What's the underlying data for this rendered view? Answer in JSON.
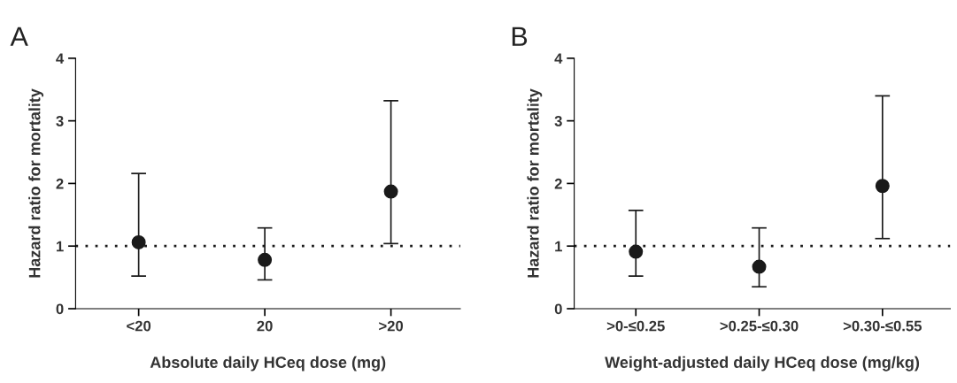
{
  "chart_data": [
    {
      "type": "scatter",
      "title": "A",
      "xlabel": "Absolute daily HCeq dose (mg)",
      "ylabel": "Hazard ratio for mortality",
      "categories": [
        "<20",
        "20",
        ">20"
      ],
      "series": [
        {
          "color": "#1a1a1a",
          "values": [
            1.06,
            0.78,
            1.87
          ],
          "errors": [
            [
              0.52,
              2.16
            ],
            [
              0.46,
              1.29
            ],
            [
              1.04,
              3.32
            ]
          ]
        }
      ],
      "ylim": [
        0,
        4
      ],
      "yticks": [
        0,
        1,
        2,
        3,
        4
      ],
      "marker": "circle",
      "grid": false,
      "legend": false,
      "ref_lines": [
        {
          "axis": "y",
          "value": 1,
          "line_style": "dotted",
          "color": "#1a1a1a"
        }
      ]
    },
    {
      "type": "scatter",
      "title": "B",
      "xlabel": "Weight-adjusted daily HCeq dose (mg/kg)",
      "ylabel": "Hazard ratio for mortality",
      "categories": [
        ">0-≤0.25",
        ">0.25-≤0.30",
        ">0.30-≤0.55"
      ],
      "series": [
        {
          "color": "#1a1a1a",
          "values": [
            0.91,
            0.67,
            1.96
          ],
          "errors": [
            [
              0.52,
              1.57
            ],
            [
              0.35,
              1.29
            ],
            [
              1.12,
              3.4
            ]
          ]
        }
      ],
      "ylim": [
        0,
        4
      ],
      "yticks": [
        0,
        1,
        2,
        3,
        4
      ],
      "marker": "circle",
      "grid": false,
      "legend": false,
      "ref_lines": [
        {
          "axis": "y",
          "value": 1,
          "line_style": "dotted",
          "color": "#1a1a1a"
        }
      ]
    }
  ]
}
